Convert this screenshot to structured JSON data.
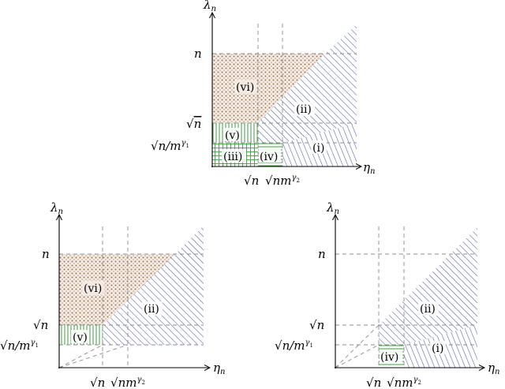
{
  "labels": {
    "y_axis": "λ",
    "y_sub": "n",
    "x_axis": "η",
    "x_sub": "n",
    "tick_n": "n",
    "tick_sqrt_n": "n",
    "tick_n_over_m_base": "n/m",
    "tick_gamma1": "γ",
    "tick_gamma1_sub": "1",
    "tick_nm_base": "nm",
    "tick_gamma2": "γ",
    "tick_gamma2_sub": "2",
    "radical": "√"
  },
  "regions": {
    "i": "(i)",
    "ii": "(ii)",
    "iii": "(iii)",
    "iv": "(iv)",
    "v": "(v)",
    "vi": "(vi)"
  },
  "colors": {
    "region_i_ii": "#4a57a8",
    "region_iii_iv_v": "#3f9e3f",
    "region_vi": "#9c7a58",
    "guides": "#8c8c8c"
  }
}
